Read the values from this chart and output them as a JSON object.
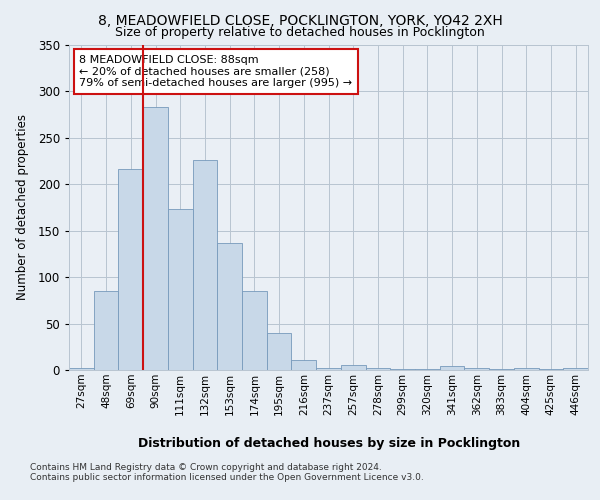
{
  "title1": "8, MEADOWFIELD CLOSE, POCKLINGTON, YORK, YO42 2XH",
  "title2": "Size of property relative to detached houses in Pocklington",
  "xlabel": "Distribution of detached houses by size in Pocklington",
  "ylabel": "Number of detached properties",
  "bar_labels": [
    "27sqm",
    "48sqm",
    "69sqm",
    "90sqm",
    "111sqm",
    "132sqm",
    "153sqm",
    "174sqm",
    "195sqm",
    "216sqm",
    "237sqm",
    "257sqm",
    "278sqm",
    "299sqm",
    "320sqm",
    "341sqm",
    "362sqm",
    "383sqm",
    "404sqm",
    "425sqm",
    "446sqm"
  ],
  "bar_values": [
    2,
    85,
    217,
    283,
    173,
    226,
    137,
    85,
    40,
    11,
    2,
    5,
    2,
    1,
    1,
    4,
    2,
    1,
    2,
    1,
    2
  ],
  "bar_color": "#c8d8e8",
  "bar_edge_color": "#7799bb",
  "property_line_color": "#cc1111",
  "annotation_text": "8 MEADOWFIELD CLOSE: 88sqm\n← 20% of detached houses are smaller (258)\n79% of semi-detached houses are larger (995) →",
  "annotation_box_color": "#ffffff",
  "annotation_box_edge": "#cc1111",
  "ylim": [
    0,
    350
  ],
  "yticks": [
    0,
    50,
    100,
    150,
    200,
    250,
    300,
    350
  ],
  "bg_color": "#e8eef4",
  "plot_bg": "#eaeff5",
  "footer1": "Contains HM Land Registry data © Crown copyright and database right 2024.",
  "footer2": "Contains public sector information licensed under the Open Government Licence v3.0."
}
